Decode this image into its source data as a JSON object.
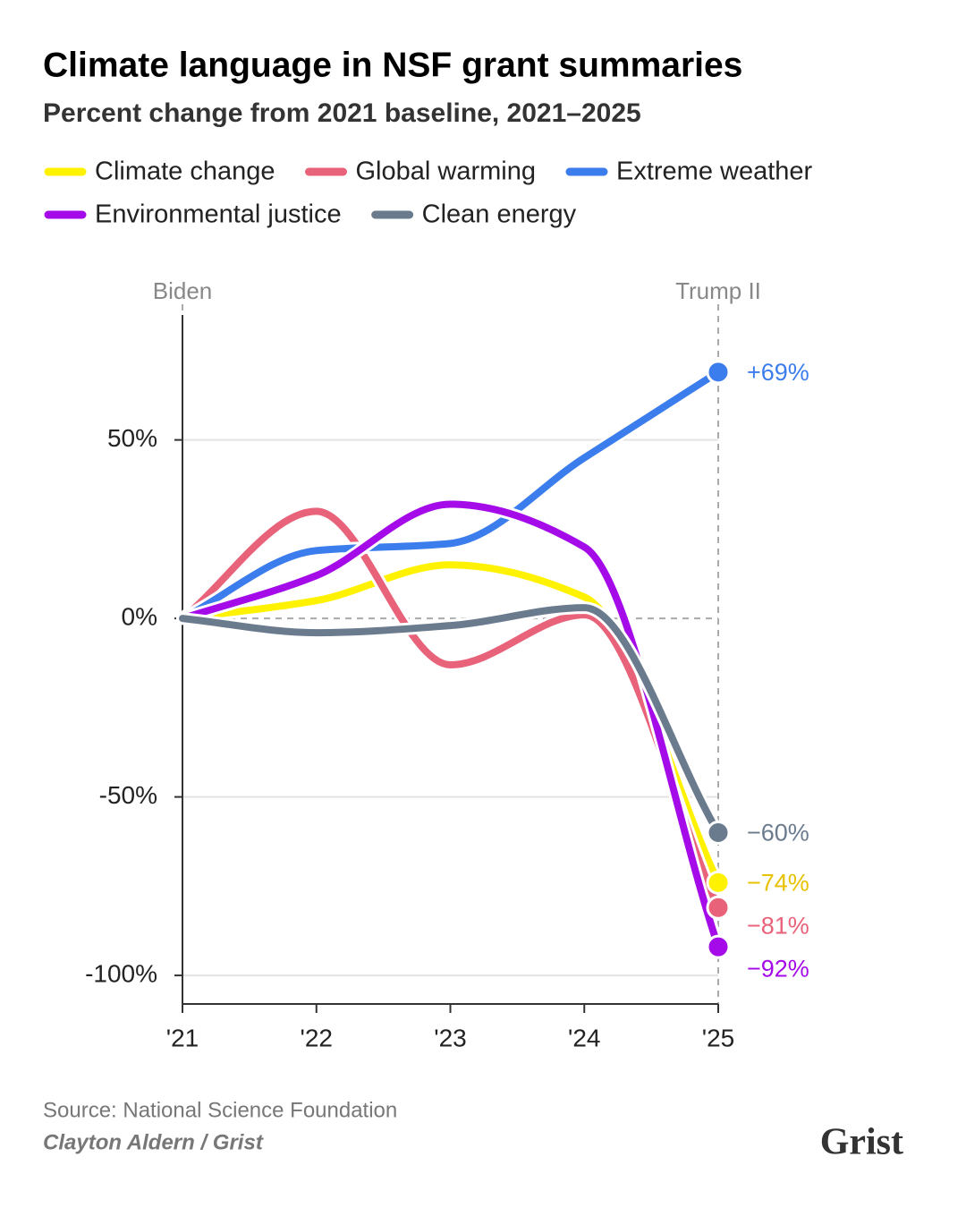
{
  "chart_data": {
    "type": "line",
    "title": "Climate language in NSF grant summaries",
    "subtitle": "Percent change from 2021 baseline, 2021–2025",
    "categories": [
      "'21",
      "'22",
      "'23",
      "'24",
      "'25"
    ],
    "series": [
      {
        "name": "Climate change",
        "color": "#fff200",
        "label_color": "#e8c200",
        "values": [
          0,
          5,
          15,
          6,
          -74
        ],
        "value_labels": [
          null,
          null,
          null,
          null,
          "−74%"
        ]
      },
      {
        "name": "Global warming",
        "color": "#e8627a",
        "values": [
          0,
          30,
          -13,
          1,
          -81
        ],
        "value_labels": [
          null,
          null,
          null,
          null,
          "−81%"
        ]
      },
      {
        "name": "Extreme weather",
        "color": "#3b7ded",
        "values": [
          0,
          19,
          21,
          45,
          69
        ],
        "value_labels": [
          null,
          null,
          null,
          null,
          "+69%"
        ]
      },
      {
        "name": "Environmental justice",
        "color": "#a40be8",
        "values": [
          0,
          12,
          32,
          20,
          -92
        ],
        "value_labels": [
          null,
          null,
          null,
          null,
          "−92%"
        ]
      },
      {
        "name": "Clean energy",
        "color": "#6b7b8e",
        "values": [
          0,
          -4,
          -2,
          3,
          -60
        ],
        "value_labels": [
          null,
          null,
          null,
          null,
          "−60%"
        ]
      }
    ],
    "ylim": [
      -108,
      85
    ],
    "yticks": [
      {
        "value": 50,
        "label": "50%"
      },
      {
        "value": 0,
        "label": "0%"
      },
      {
        "value": -50,
        "label": "-50%"
      },
      {
        "value": -100,
        "label": "-100%"
      }
    ],
    "grid": true,
    "annotations": [
      {
        "text": "Biden",
        "x": "'21"
      },
      {
        "text": "Trump II",
        "x": "'25"
      }
    ],
    "source": "Source: National Science Foundation",
    "credit": "Clayton Aldern / Grist",
    "logo": "Grist"
  }
}
